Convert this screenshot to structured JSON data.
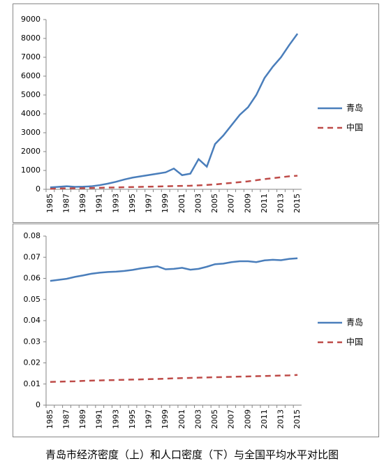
{
  "chart_data": [
    {
      "type": "line",
      "categories": [
        "1985",
        null,
        "1987",
        null,
        "1989",
        null,
        "1991",
        null,
        "1993",
        null,
        "1995",
        null,
        "1997",
        null,
        "1999",
        null,
        "2001",
        null,
        "2003",
        null,
        "2005",
        null,
        "2007",
        null,
        "2009",
        null,
        "2011",
        null,
        "2013",
        null,
        "2015"
      ],
      "series": [
        {
          "name": "青岛",
          "color": "#4a7ebb",
          "line_style": "solid",
          "values": [
            100,
            130,
            160,
            130,
            140,
            160,
            220,
            300,
            400,
            520,
            620,
            690,
            760,
            830,
            900,
            1100,
            750,
            830,
            1600,
            1200,
            2400,
            2850,
            3400,
            3950,
            4350,
            5000,
            5900,
            6500,
            7000,
            7650,
            8250
          ]
        },
        {
          "name": "中国",
          "color": "#be4b48",
          "line_style": "dashed",
          "values": [
            30,
            40,
            50,
            55,
            60,
            70,
            80,
            90,
            100,
            110,
            120,
            130,
            140,
            150,
            160,
            170,
            180,
            190,
            210,
            230,
            260,
            300,
            340,
            380,
            420,
            480,
            540,
            590,
            640,
            690,
            720
          ]
        }
      ],
      "ylim": [
        0,
        9000
      ],
      "yticks": [
        0,
        1000,
        2000,
        3000,
        4000,
        5000,
        6000,
        7000,
        8000,
        9000
      ],
      "grid": false,
      "legend": "right"
    },
    {
      "type": "line",
      "categories": [
        "1985",
        null,
        "1987",
        null,
        "1989",
        null,
        "1991",
        null,
        "1993",
        null,
        "1995",
        null,
        "1997",
        null,
        "1999",
        null,
        "2001",
        null,
        "2003",
        null,
        "2005",
        null,
        "2007",
        null,
        "2009",
        null,
        "2011",
        null,
        "2013",
        null,
        "2015"
      ],
      "series": [
        {
          "name": "青岛",
          "color": "#4a7ebb",
          "line_style": "solid",
          "values": [
            0.0588,
            0.0593,
            0.0598,
            0.0607,
            0.0614,
            0.0622,
            0.0627,
            0.063,
            0.0632,
            0.0635,
            0.064,
            0.0647,
            0.0652,
            0.0657,
            0.0643,
            0.0645,
            0.065,
            0.0641,
            0.0645,
            0.0655,
            0.0667,
            0.067,
            0.0677,
            0.0681,
            0.0681,
            0.0677,
            0.0685,
            0.0688,
            0.0686,
            0.0692,
            0.0695
          ]
        },
        {
          "name": "中国",
          "color": "#be4b48",
          "line_style": "dashed",
          "values": [
            0.011,
            0.0111,
            0.0112,
            0.0113,
            0.0115,
            0.0116,
            0.0117,
            0.0118,
            0.0119,
            0.012,
            0.0121,
            0.0122,
            0.0123,
            0.0124,
            0.0125,
            0.0127,
            0.0128,
            0.0129,
            0.013,
            0.0131,
            0.0132,
            0.0133,
            0.0134,
            0.0135,
            0.0136,
            0.0137,
            0.0138,
            0.0139,
            0.014,
            0.0141,
            0.0143
          ]
        }
      ],
      "ylim": [
        0,
        0.08
      ],
      "yticks": [
        0,
        0.01,
        0.02,
        0.03,
        0.04,
        0.05,
        0.06,
        0.07,
        0.08
      ],
      "grid": false,
      "legend": "right"
    }
  ],
  "caption": "青岛市经济密度（上）和人口密度（下）与全国平均水平对比图"
}
